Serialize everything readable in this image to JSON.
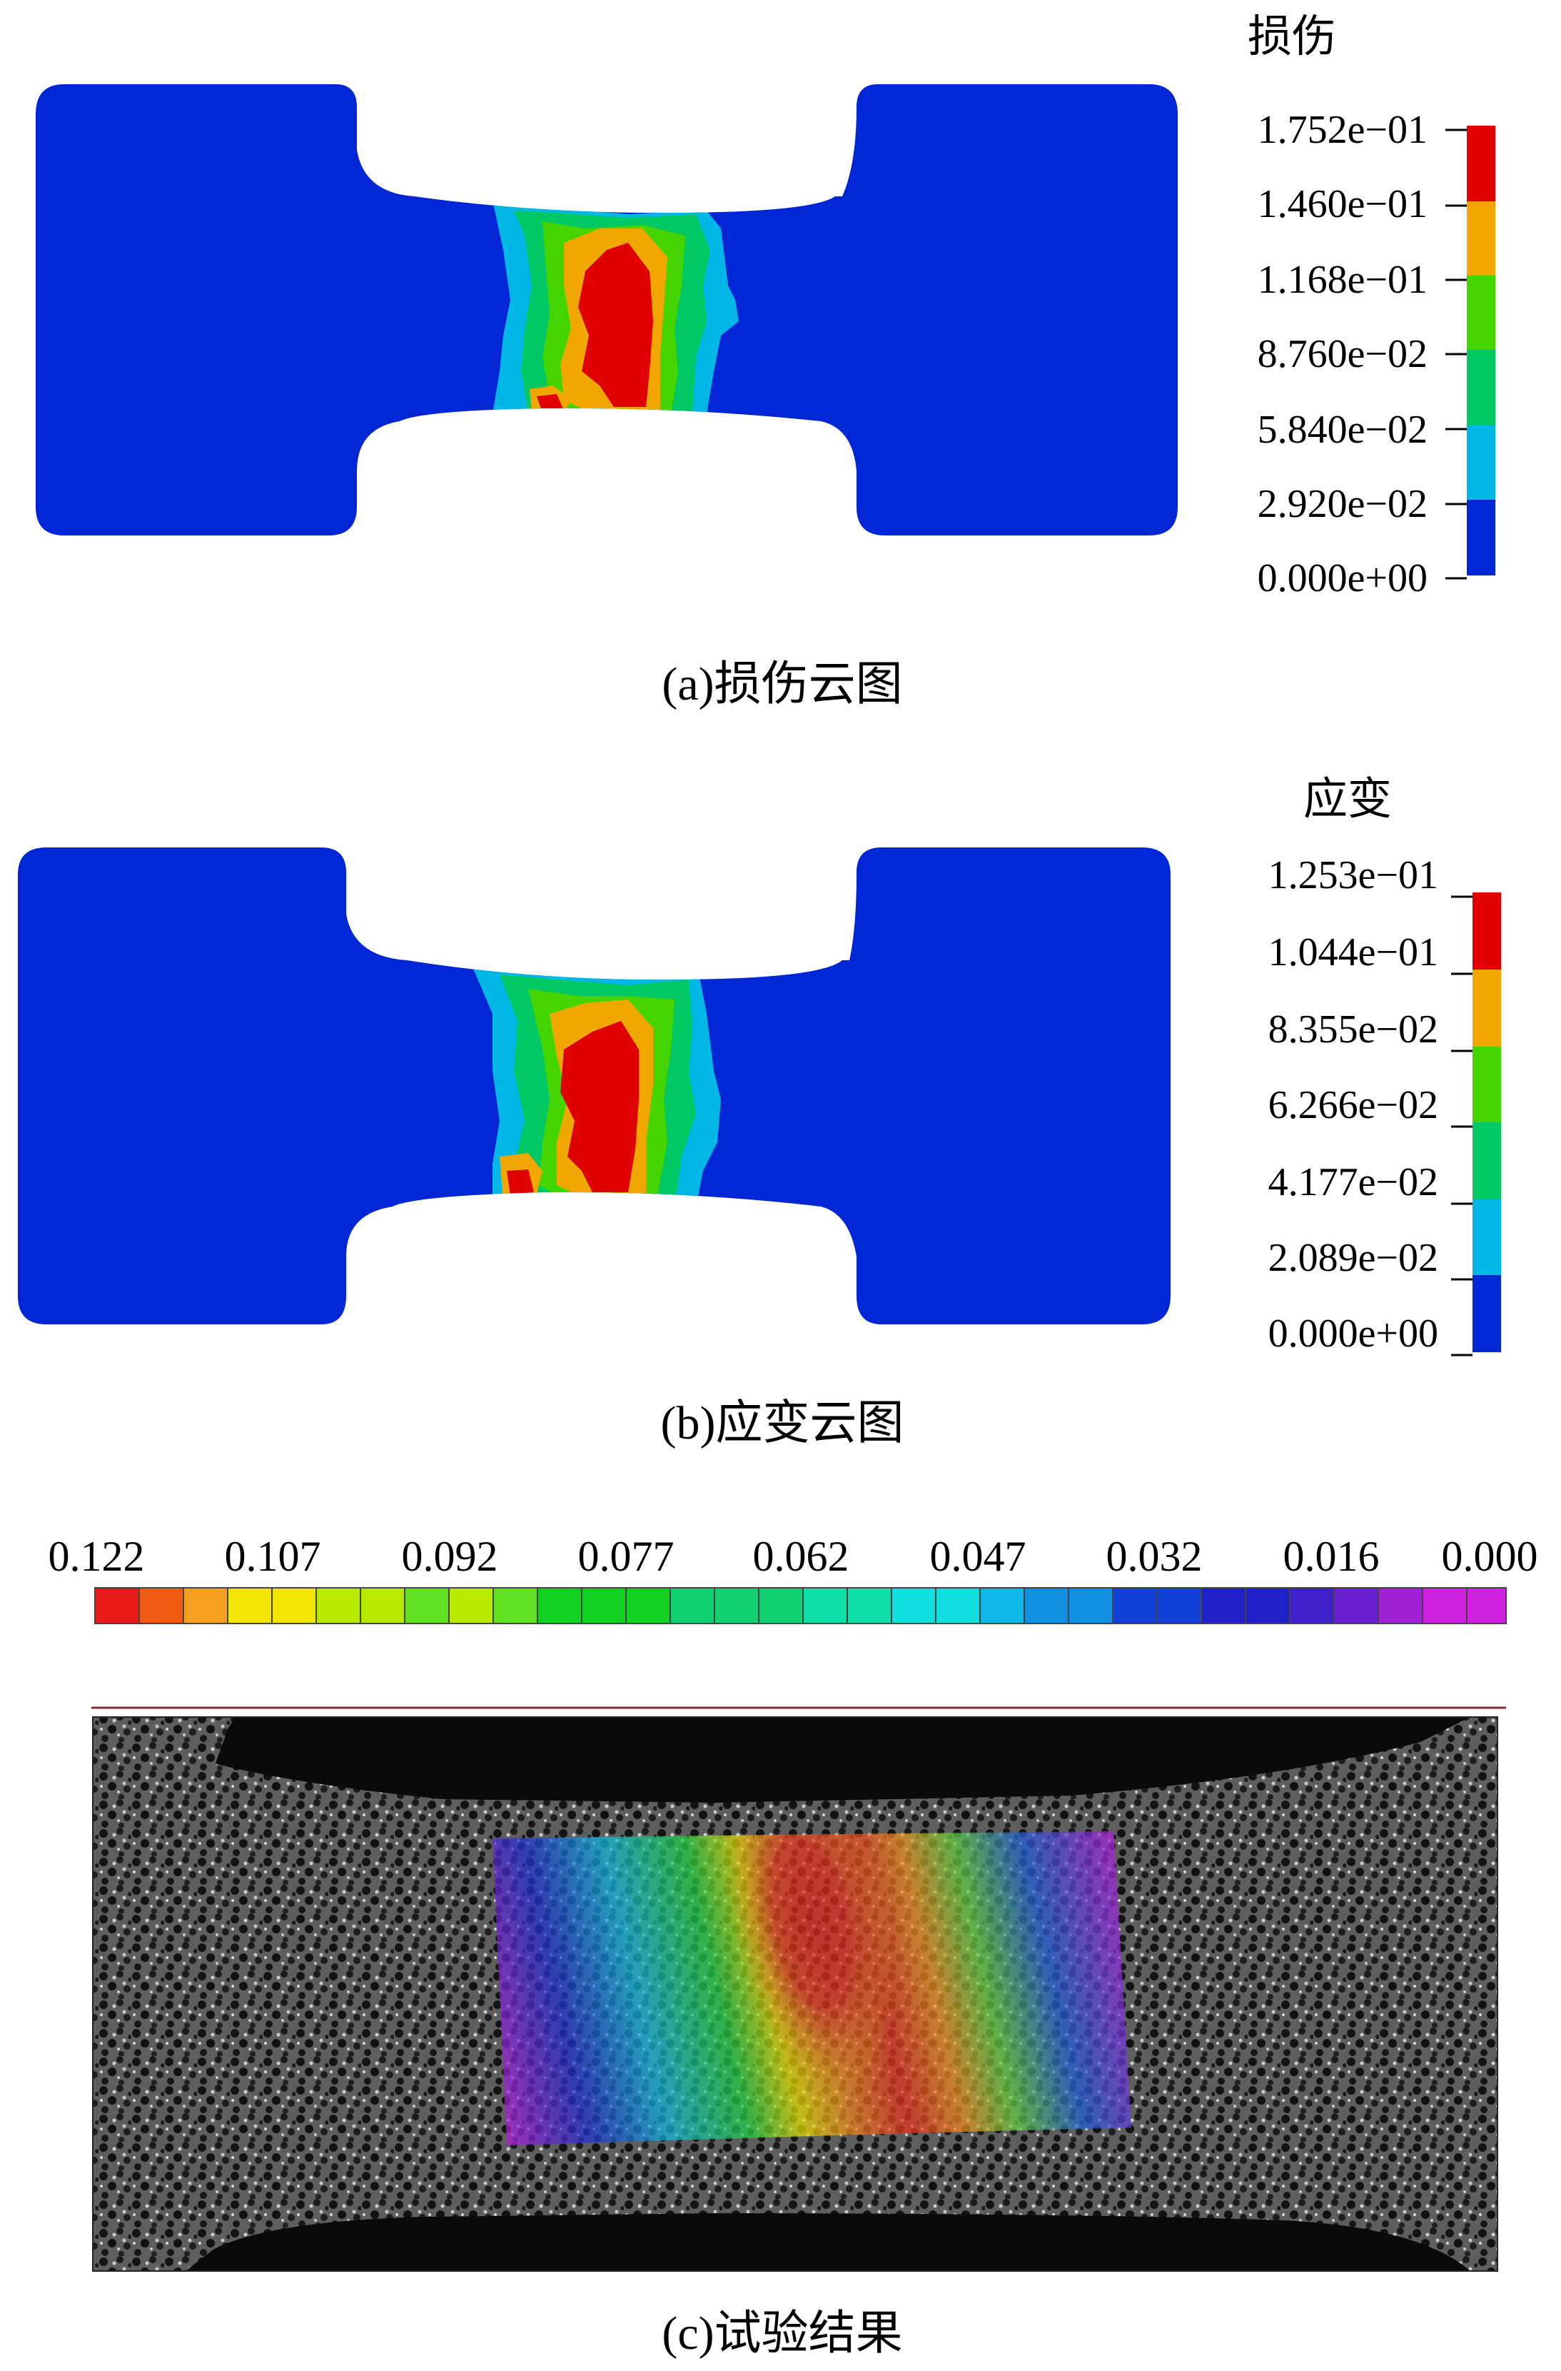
{
  "panel_a": {
    "legend_title": "损伤",
    "legend_values": [
      "1.752e−01",
      "1.460e−01",
      "1.168e−01",
      "8.760e−02",
      "5.840e−02",
      "2.920e−02",
      "0.000e+00"
    ],
    "caption": "(a)损伤云图"
  },
  "panel_b": {
    "legend_title": "应变",
    "legend_values": [
      "1.253e−01",
      "1.044e−01",
      "8.355e−02",
      "6.266e−02",
      "4.177e−02",
      "2.089e−02",
      "0.000e+00"
    ],
    "caption": "(b)应变云图"
  },
  "panel_c": {
    "scale_labels": [
      "0.122",
      "0.107",
      "0.092",
      "0.077",
      "0.062",
      "0.047",
      "0.032",
      "0.016",
      "0.000"
    ],
    "caption": "(c)试验结果"
  },
  "colors": {
    "contour_bands_high_to_low": [
      "#e10000",
      "#f0a800",
      "#44d400",
      "#00c864",
      "#00b8e8",
      "#0026d6"
    ],
    "dic_scale_left_to_right": [
      "#e81919",
      "#ee5a10",
      "#f7a020",
      "#f2e400",
      "#b8ea00",
      "#60e020",
      "#10d020",
      "#10d070",
      "#10e0a8",
      "#10e0e0",
      "#1090e0",
      "#1040d8",
      "#2020c8",
      "#6a20d0",
      "#a020d8",
      "#d020e0"
    ]
  }
}
